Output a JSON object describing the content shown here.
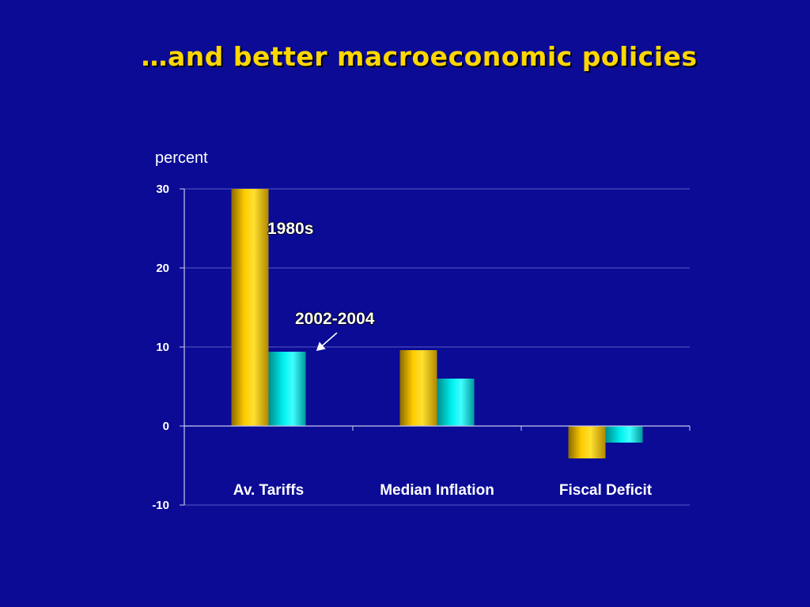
{
  "slide": {
    "title": "…and better macroeconomic policies"
  },
  "chart_data": {
    "type": "bar",
    "ylabel": "percent",
    "ylim": [
      -10,
      30
    ],
    "yticks": [
      30,
      20,
      10,
      0,
      -10
    ],
    "grid": true,
    "categories": [
      "Av. Tariffs",
      "Median Inflation",
      "Fiscal Deficit"
    ],
    "series": [
      {
        "name": "1980s",
        "values": [
          30,
          9.6,
          -4.1
        ],
        "color": "#ffcc00"
      },
      {
        "name": "2002-2004",
        "values": [
          9.4,
          6.0,
          -2.1
        ],
        "color": "#00e5e5"
      }
    ],
    "colors": {
      "background": "#0b0b96",
      "title": "#ffd700",
      "gridline": "#5a5ac8",
      "axis": "#c8c8f0"
    }
  }
}
